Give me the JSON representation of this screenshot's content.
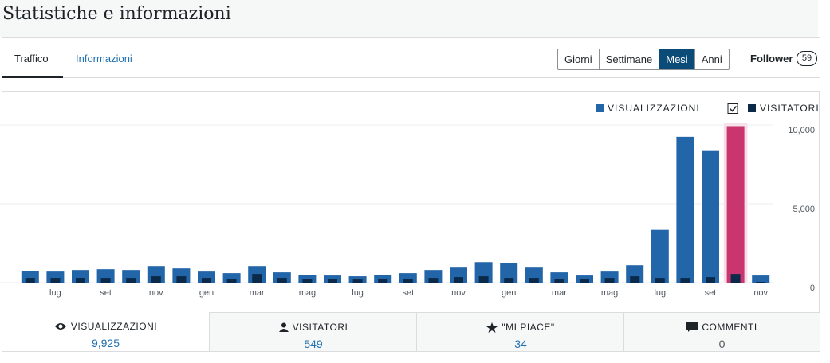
{
  "header": {
    "title": "Statistiche e informazioni"
  },
  "tabs": [
    "Traffico",
    "Informazioni"
  ],
  "periods": [
    "Giorni",
    "Settimane",
    "Mesi",
    "Anni"
  ],
  "follower": {
    "label": "Follower",
    "count": "59"
  },
  "chart_data": {
    "type": "bar",
    "categories": [
      null,
      "lug",
      null,
      "set",
      null,
      "nov",
      null,
      "gen",
      null,
      "mar",
      null,
      "mag",
      null,
      "lug",
      null,
      "set",
      null,
      "nov",
      null,
      "gen",
      null,
      "mar",
      null,
      "mag",
      null,
      "lug",
      null,
      "set",
      null,
      "nov"
    ],
    "series": [
      {
        "name": "VISUALIZZAZIONI",
        "color": "#2265a8",
        "values": [
          750,
          700,
          800,
          850,
          800,
          1050,
          900,
          700,
          600,
          1050,
          650,
          500,
          450,
          400,
          500,
          600,
          800,
          950,
          1300,
          1250,
          950,
          650,
          450,
          700,
          1100,
          3350,
          9250,
          8350,
          9925,
          450
        ]
      },
      {
        "name": "VISITATORI",
        "color": "#0b2a4a",
        "values": [
          300,
          300,
          300,
          300,
          300,
          400,
          400,
          300,
          250,
          550,
          300,
          250,
          200,
          200,
          250,
          250,
          300,
          350,
          400,
          300,
          300,
          250,
          200,
          300,
          400,
          300,
          300,
          350,
          549,
          50
        ]
      }
    ],
    "highlight_index": 28,
    "highlight_color": "#c9356e",
    "ylim": [
      0,
      10000
    ],
    "yticks": [
      0,
      {
        "value": 5000,
        "label": "5,000"
      },
      {
        "value": 10000,
        "label": "10,000"
      }
    ],
    "grid": true
  },
  "summary": [
    {
      "label": "VISUALIZZAZIONI",
      "value": "9,925"
    },
    {
      "label": "VISITATORI",
      "value": "549"
    },
    {
      "label": "\"MI PIACE\"",
      "value": "34"
    },
    {
      "label": "COMMENTI",
      "value": "0"
    }
  ]
}
